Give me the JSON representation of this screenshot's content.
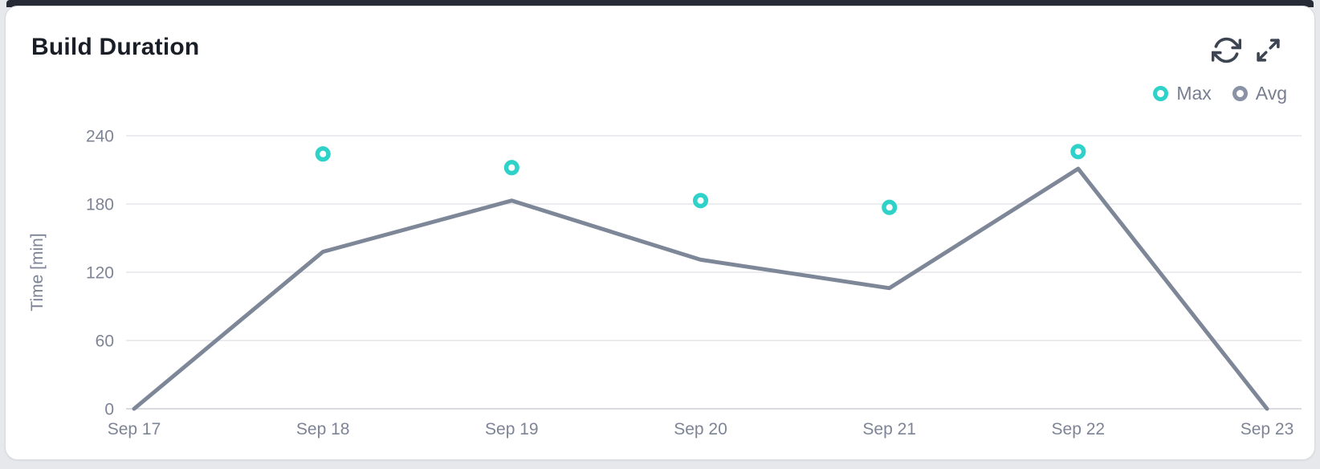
{
  "header": {
    "title": "Build Duration",
    "actions": [
      {
        "icon": "refresh-icon"
      },
      {
        "icon": "expand-icon"
      }
    ]
  },
  "colors": {
    "max_series": "#2fd2c8",
    "avg_series": "#7e8798",
    "axis_text": "#7d8495",
    "icon": "#3d4452",
    "gridline": "#e3e5ea"
  },
  "chart_data": {
    "type": "line",
    "title": "Build Duration",
    "xlabel": "",
    "ylabel": "Time [min]",
    "categories": [
      "Sep 17",
      "Sep 18",
      "Sep 19",
      "Sep 20",
      "Sep 21",
      "Sep 22",
      "Sep 23"
    ],
    "yticks": [
      0,
      60,
      120,
      180,
      240
    ],
    "ylim": [
      0,
      240
    ],
    "grid": "horizontal",
    "legend_position": "top-right",
    "series": [
      {
        "name": "Max",
        "type": "scatter",
        "marker": "open-circle",
        "color": "#2fd2c8",
        "values": [
          null,
          224,
          212,
          183,
          177,
          226,
          null
        ]
      },
      {
        "name": "Avg",
        "type": "line",
        "color": "#7e8798",
        "values": [
          0,
          138,
          183,
          131,
          106,
          211,
          0
        ]
      }
    ]
  }
}
